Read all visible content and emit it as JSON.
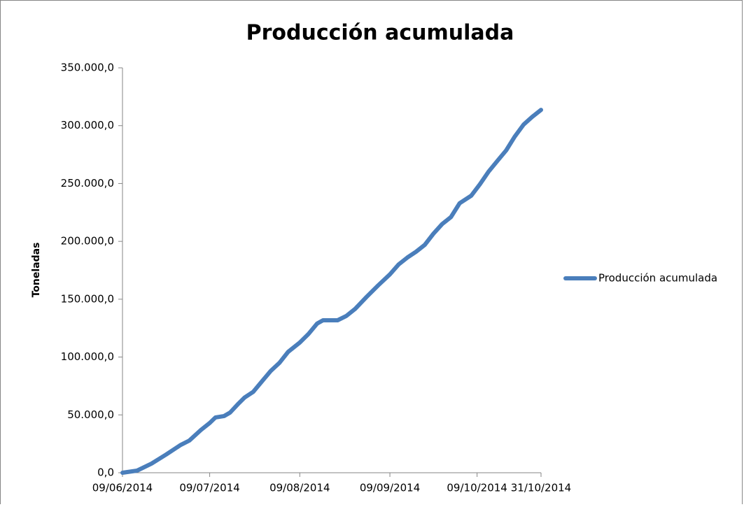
{
  "chart_data": {
    "type": "line",
    "title": "Producción acumulada",
    "y_label": "Toneladas",
    "x": [
      "2014-06-09",
      "2014-06-14",
      "2014-06-19",
      "2014-06-24",
      "2014-06-29",
      "2014-07-02",
      "2014-07-06",
      "2014-07-09",
      "2014-07-11",
      "2014-07-14",
      "2014-07-16",
      "2014-07-19",
      "2014-07-21",
      "2014-07-24",
      "2014-07-27",
      "2014-07-30",
      "2014-08-02",
      "2014-08-05",
      "2014-08-09",
      "2014-08-12",
      "2014-08-15",
      "2014-08-17",
      "2014-08-22",
      "2014-08-25",
      "2014-08-28",
      "2014-09-01",
      "2014-09-05",
      "2014-09-09",
      "2014-09-12",
      "2014-09-15",
      "2014-09-18",
      "2014-09-21",
      "2014-09-24",
      "2014-09-27",
      "2014-09-30",
      "2014-10-03",
      "2014-10-07",
      "2014-10-10",
      "2014-10-13",
      "2014-10-16",
      "2014-10-19",
      "2014-10-22",
      "2014-10-25",
      "2014-10-28",
      "2014-10-31"
    ],
    "series": [
      {
        "name": "Producción acumulada",
        "color": "#4a7ebb",
        "values": [
          0,
          1800,
          7900,
          15700,
          24000,
          27800,
          37000,
          43000,
          47800,
          49000,
          52000,
          60000,
          65000,
          70000,
          79000,
          88000,
          95000,
          104500,
          112500,
          120000,
          129000,
          131800,
          131800,
          135500,
          141500,
          152000,
          162000,
          171500,
          180000,
          186000,
          191000,
          197000,
          206700,
          215000,
          221000,
          233000,
          239500,
          249500,
          260500,
          269600,
          278700,
          290700,
          301000,
          307700,
          313700
        ]
      }
    ],
    "xlim": [
      "2014-06-09",
      "2014-10-31"
    ],
    "xticks": [
      {
        "value": "2014-06-09",
        "label": "09/06/2014"
      },
      {
        "value": "2014-07-09",
        "label": "09/07/2014"
      },
      {
        "value": "2014-08-09",
        "label": "09/08/2014"
      },
      {
        "value": "2014-09-09",
        "label": "09/09/2014"
      },
      {
        "value": "2014-10-09",
        "label": "09/10/2014"
      },
      {
        "value": "2014-10-31",
        "label": "31/10/2014"
      }
    ],
    "ylim": [
      0,
      350000
    ],
    "yticks": [
      {
        "value": 0,
        "label": "0,0"
      },
      {
        "value": 50000,
        "label": "50.000,0"
      },
      {
        "value": 100000,
        "label": "100.000,0"
      },
      {
        "value": 150000,
        "label": "150.000,0"
      },
      {
        "value": 200000,
        "label": "200.000,0"
      },
      {
        "value": 250000,
        "label": "250.000,0"
      },
      {
        "value": 300000,
        "label": "300.000,0"
      },
      {
        "value": 350000,
        "label": "350.000,0"
      }
    ],
    "grid": false,
    "legend": "right"
  }
}
